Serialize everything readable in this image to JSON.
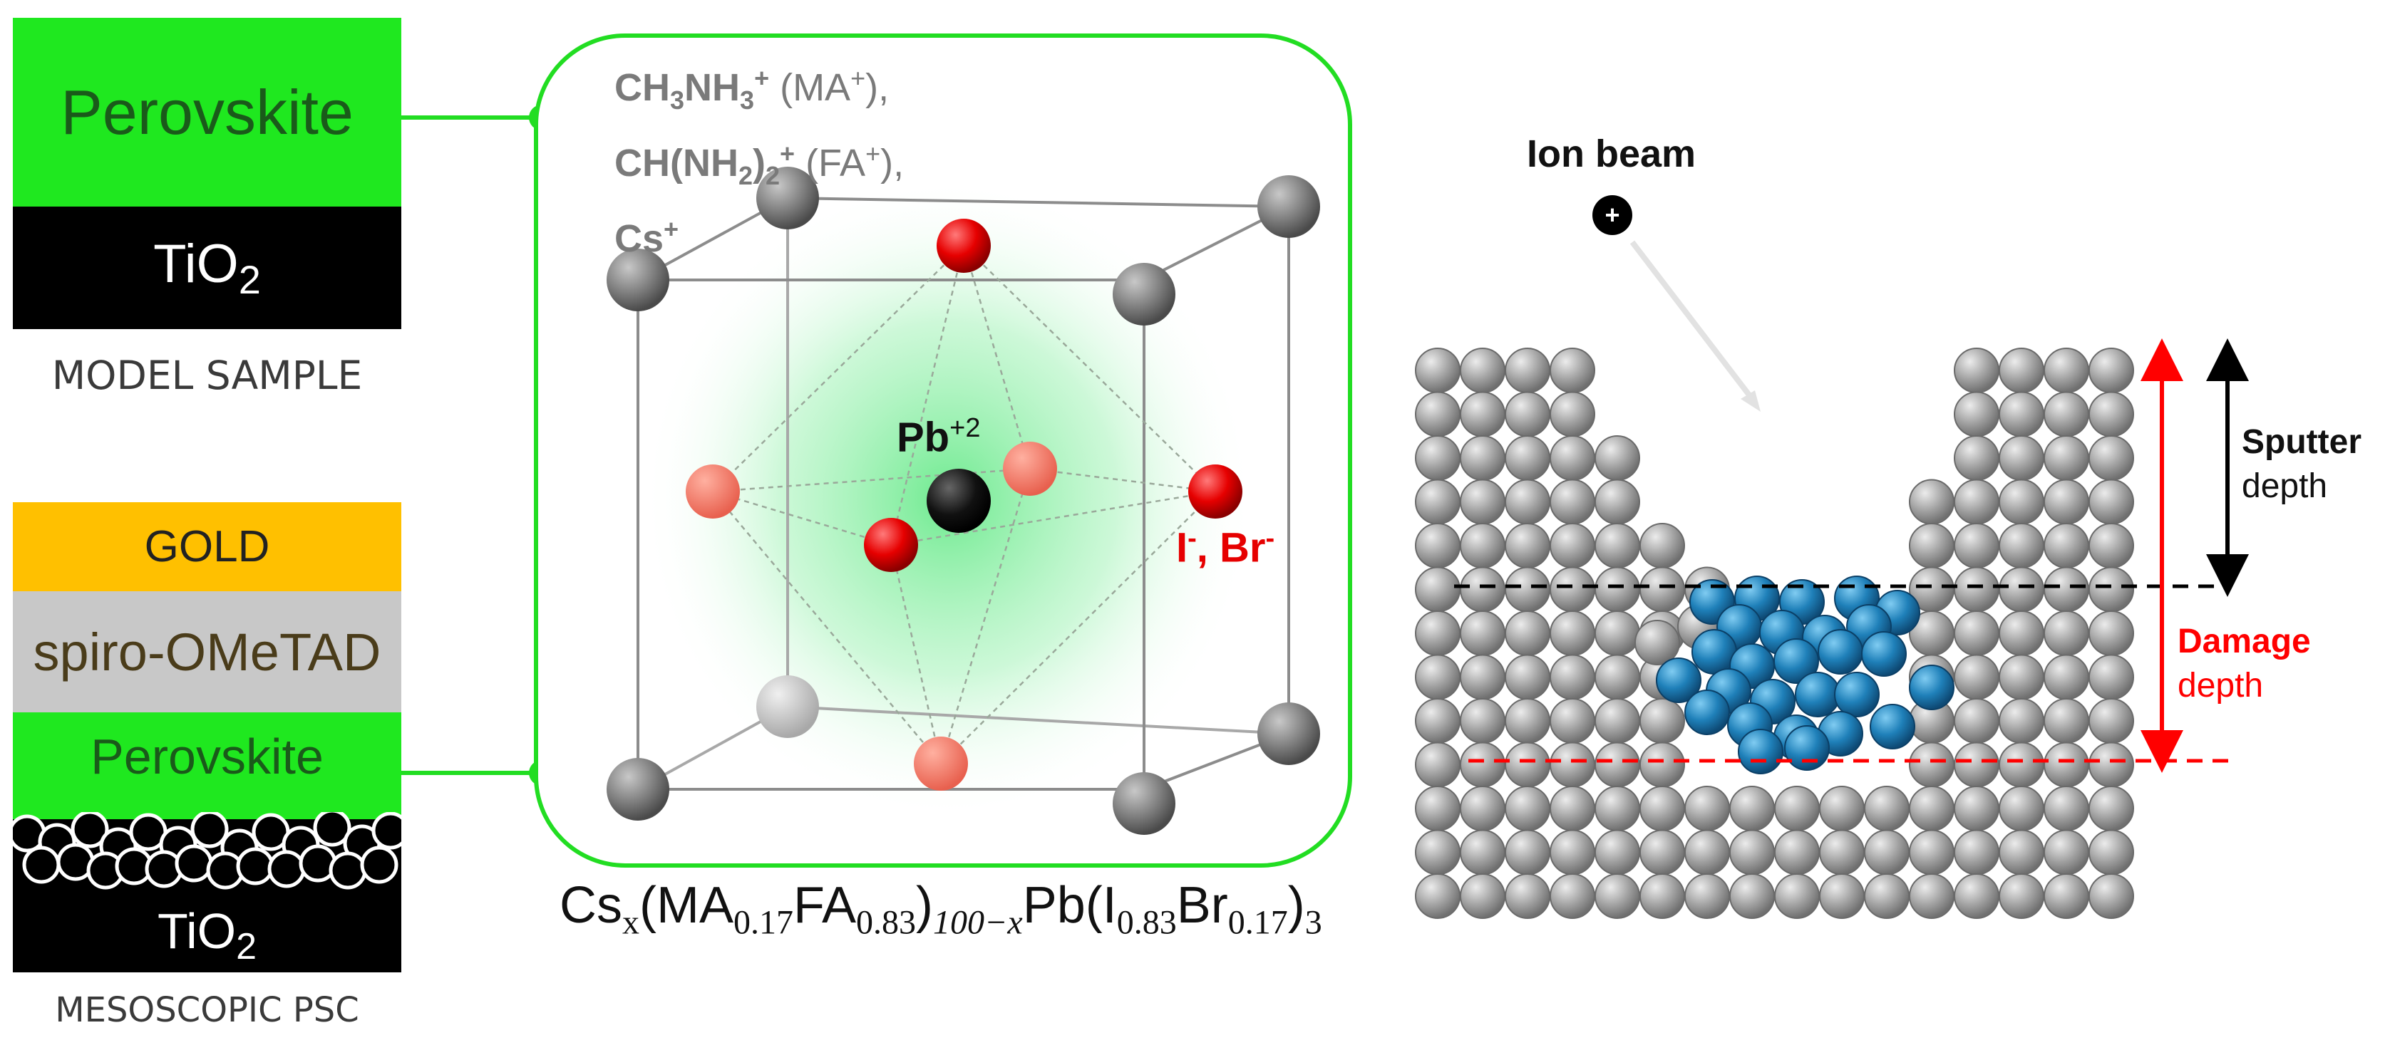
{
  "model_sample": {
    "layers": [
      "Perovskite",
      "TiO",
      "2"
    ],
    "caption": "MODEL SAMPLE"
  },
  "mesoscopic_psc": {
    "layers": [
      "GOLD",
      "spiro-OMeTAD",
      "Perovskite",
      "TiO",
      "2"
    ],
    "caption": "MESOSCOPIC PSC"
  },
  "crystal": {
    "a_site": {
      "line1_main": "CH",
      "line1_sub1": "3",
      "line1_mid": "NH",
      "line1_sub2": "3",
      "line1_sup": "+",
      "line1_abbr": " (MA",
      "line1_abbr_sup": "+",
      "line1_end": "),",
      "line2_main": "CH(NH",
      "line2_sub": "2",
      "line2_close": ")",
      "line2_sub2": "2",
      "line2_sup": "+",
      "line2_abbr": " (FA",
      "line2_abbr_sup": "+",
      "line2_end": "),",
      "line3_main": "Cs",
      "line3_sup": "+"
    },
    "b_site": {
      "label": "Pb",
      "sup": "+2"
    },
    "x_site": {
      "i": "I",
      "i_sup": "-",
      "sep": ", Br",
      "br_sup": "-"
    },
    "formula": {
      "cs": "Cs",
      "x": "x",
      "open": "(MA",
      "ma": "0.17",
      "fa": "FA",
      "fa_sub": "0.83",
      "close": ")",
      "sub100": "100−x",
      "pb": "Pb(I",
      "i_sub": "0.83",
      "br": "Br",
      "br_sub": "0.17",
      "end": ")",
      "three": "3"
    }
  },
  "sputter": {
    "ion_beam": "Ion beam",
    "ion_symbol": "+",
    "sputter_word": "Sputter",
    "sputter_depth": "depth",
    "damage_word": "Damage",
    "damage_depth": "depth"
  },
  "colors": {
    "perovskite": "#1fe81f",
    "tio2": "#000000",
    "gold": "#ffc000",
    "spiro": "#c8c8c8",
    "connector": "#22dd22",
    "atom_gray": "#8a8a8a",
    "atom_red": "#e60000",
    "atom_blue": "#1f7fb8",
    "damage_red": "#ff0000"
  }
}
